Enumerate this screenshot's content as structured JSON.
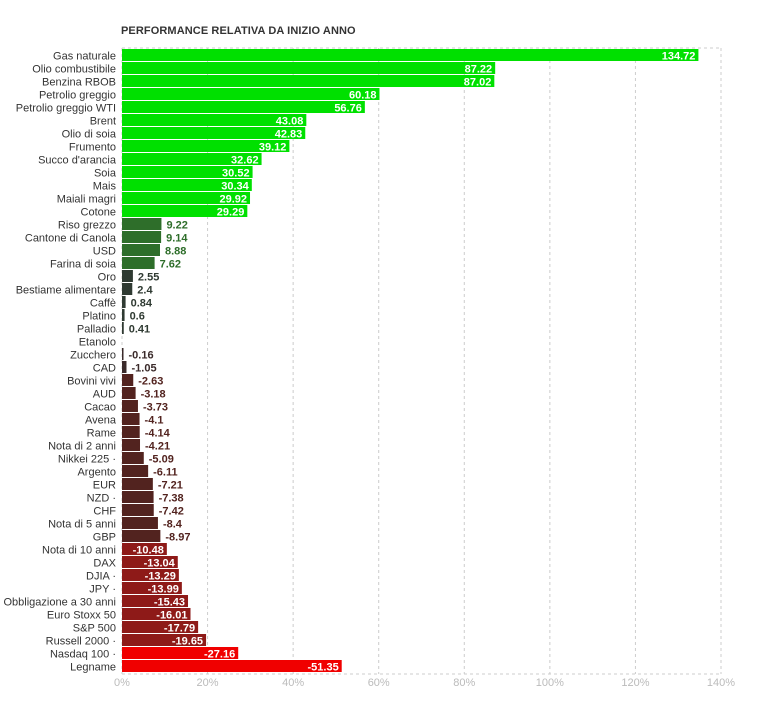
{
  "chart_data": {
    "type": "bar",
    "orientation": "horizontal",
    "title": "PERFORMANCE RELATIVA DA INIZIO ANNO",
    "xlabel": "",
    "ylabel": "",
    "xlim": [
      0,
      140
    ],
    "xticks": [
      "0%",
      "20%",
      "40%",
      "60%",
      "80%",
      "100%",
      "120%",
      "140%"
    ],
    "grid": true,
    "note": "bar length shows absolute value",
    "categories": [
      "Gas naturale",
      "Olio combustibile",
      "Benzina RBOB",
      "Petrolio greggio",
      "Petrolio greggio WTI",
      "Brent",
      "Olio di soia",
      "Frumento",
      "Succo d'arancia",
      "Soia",
      "Mais",
      "Maiali magri",
      "Cotone",
      "Riso grezzo",
      "Cantone di Canola",
      "USD",
      "Farina di soia",
      "Oro",
      "Bestiame alimentare",
      "Caffè",
      "Platino",
      "Palladio",
      "Etanolo",
      "Zucchero",
      "CAD",
      "Bovini vivi",
      "AUD",
      "Cacao",
      "Avena",
      "Rame",
      "Nota di 2 anni",
      "Nikkei 225 ·",
      "Argento",
      "EUR",
      "NZD ·",
      "CHF",
      "Nota di 5 anni",
      "GBP",
      "Nota di 10 anni",
      "DAX",
      "DJIA ·",
      "JPY ·",
      "Obbligazione a 30 anni",
      "Euro Stoxx 50",
      "S&P 500",
      "Russell 2000 ·",
      "Nasdaq 100 ·",
      "Legname"
    ],
    "values": [
      134.72,
      87.22,
      87.02,
      60.18,
      56.76,
      43.08,
      42.83,
      39.12,
      32.62,
      30.52,
      30.34,
      29.92,
      29.29,
      9.22,
      9.14,
      8.88,
      7.62,
      2.55,
      2.4,
      0.84,
      0.6,
      0.41,
      null,
      -0.16,
      -1.05,
      -2.63,
      -3.18,
      -3.73,
      -4.1,
      -4.14,
      -4.21,
      -5.09,
      -6.11,
      -7.21,
      -7.38,
      -7.42,
      -8.4,
      -8.97,
      -10.48,
      -13.04,
      -13.29,
      -13.99,
      -15.43,
      -16.01,
      -17.79,
      -19.65,
      -27.16,
      -51.35
    ],
    "value_labels": [
      "134.72",
      "87.22",
      "87.02",
      "60.18",
      "56.76",
      "43.08",
      "42.83",
      "39.12",
      "32.62",
      "30.52",
      "30.34",
      "29.92",
      "29.29",
      "9.22",
      "9.14",
      "8.88",
      "7.62",
      "2.55",
      "2.4",
      "0.84",
      "0.6",
      "0.41",
      "",
      "-0.16",
      "-1.05",
      "-2.63",
      "-3.18",
      "-3.73",
      "-4.1",
      "-4.14",
      "-4.21",
      "-5.09",
      "-6.11",
      "-7.21",
      "-7.38",
      "-7.42",
      "-8.4",
      "-8.97",
      "-10.48",
      "-13.04",
      "-13.29",
      "-13.99",
      "-15.43",
      "-16.01",
      "-17.79",
      "-19.65",
      "-27.16",
      "-51.35"
    ],
    "colors": {
      "strong_up": "#00e000",
      "up": "#2e6e2a",
      "flat_up": "#2f3a32",
      "flat_down": "#3a2a2a",
      "down": "#52231f",
      "strong_down": "#8e1a18",
      "very_strong_down": "#f00000"
    }
  }
}
